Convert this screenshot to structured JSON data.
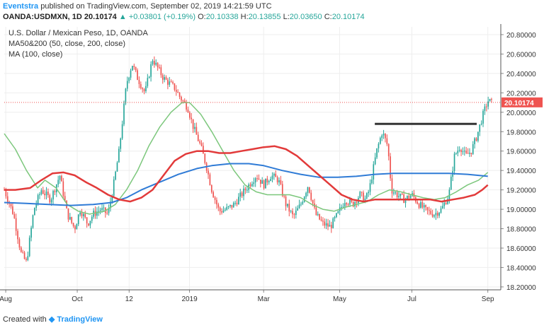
{
  "header": {
    "brand": "Eventstra",
    "published_text": "published on TradingView.com, September 02, 2019 14:21:59 UTC",
    "symbol": "OANDA:USDMXN, 1D",
    "last": "20.10174",
    "change_arrow": "▲",
    "change": "+0.03801 (+0.19%)",
    "open_label": "O:",
    "open": "20.10338",
    "high_label": "H:",
    "high": "20.13855",
    "low_label": "L:",
    "low": "20.03650",
    "close_label": "C:",
    "close": "20.10174"
  },
  "footer": {
    "created_text": "Created with",
    "logo_text": "TradingView"
  },
  "colors": {
    "up": "#26a69a",
    "down": "#ef5350",
    "ma50": "#7cc77c",
    "ma200": "#2f7bd6",
    "ma100": "#e23a3a",
    "resistance": "#333333",
    "price_line": "#ef5350",
    "price_label_bg": "#ef5350",
    "grid": "#eeeeee"
  },
  "chart_data": {
    "type": "candlestick",
    "title": "U.S. Dollar / Mexican Peso, 1D, OANDA",
    "indicator_labels": [
      "MA50&200 (50, close, 200, close)",
      "MA (100, close)"
    ],
    "x_ticks": [
      {
        "label": "Aug",
        "t": 0.04
      },
      {
        "label": "Oct",
        "t": 1.97
      },
      {
        "label": "12",
        "t": 3.37
      },
      {
        "label": "2019",
        "t": 5.0
      },
      {
        "label": "Mar",
        "t": 7.0
      },
      {
        "label": "May",
        "t": 9.05
      },
      {
        "label": "Jul",
        "t": 11.0
      },
      {
        "label": "Sep",
        "t": 13.05
      }
    ],
    "y_axis": {
      "ylim": [
        18.17,
        20.88
      ],
      "ticks": [
        "20.80000",
        "20.60000",
        "20.40000",
        "20.20000",
        "20.00000",
        "19.80000",
        "19.60000",
        "19.40000",
        "19.20000",
        "19.00000",
        "18.80000",
        "18.60000",
        "18.40000",
        "18.20000"
      ]
    },
    "x_range": [
      0,
      13.4
    ],
    "current_price": {
      "value": 20.10174,
      "label": "20.10174"
    },
    "resistance": {
      "t_start": 10.0,
      "t_end": 12.75,
      "value": 19.88
    },
    "keypoints": [
      [
        0.0,
        19.2
      ],
      [
        0.25,
        18.95
      ],
      [
        0.45,
        18.55
      ],
      [
        0.6,
        18.45
      ],
      [
        0.8,
        19.0
      ],
      [
        1.0,
        19.2
      ],
      [
        1.25,
        19.1
      ],
      [
        1.5,
        19.35
      ],
      [
        1.7,
        18.95
      ],
      [
        1.9,
        18.8
      ],
      [
        2.05,
        19.0
      ],
      [
        2.25,
        18.85
      ],
      [
        2.4,
        18.95
      ],
      [
        2.6,
        19.0
      ],
      [
        2.8,
        18.95
      ],
      [
        2.95,
        19.25
      ],
      [
        3.1,
        19.6
      ],
      [
        3.2,
        19.95
      ],
      [
        3.3,
        20.3
      ],
      [
        3.45,
        20.5
      ],
      [
        3.6,
        20.35
      ],
      [
        3.8,
        20.2
      ],
      [
        4.0,
        20.55
      ],
      [
        4.15,
        20.45
      ],
      [
        4.3,
        20.35
      ],
      [
        4.45,
        20.3
      ],
      [
        4.6,
        20.25
      ],
      [
        4.75,
        20.15
      ],
      [
        4.95,
        20.05
      ],
      [
        5.1,
        19.85
      ],
      [
        5.3,
        19.65
      ],
      [
        5.45,
        19.45
      ],
      [
        5.6,
        19.2
      ],
      [
        5.8,
        18.98
      ],
      [
        6.0,
        19.0
      ],
      [
        6.2,
        19.05
      ],
      [
        6.4,
        19.15
      ],
      [
        6.6,
        19.25
      ],
      [
        6.8,
        19.35
      ],
      [
        7.0,
        19.25
      ],
      [
        7.2,
        19.35
      ],
      [
        7.4,
        19.3
      ],
      [
        7.6,
        19.05
      ],
      [
        7.8,
        18.92
      ],
      [
        8.0,
        19.05
      ],
      [
        8.2,
        19.25
      ],
      [
        8.4,
        18.95
      ],
      [
        8.6,
        18.85
      ],
      [
        8.8,
        18.82
      ],
      [
        9.0,
        18.95
      ],
      [
        9.2,
        19.1
      ],
      [
        9.4,
        19.05
      ],
      [
        9.6,
        19.15
      ],
      [
        9.75,
        19.1
      ],
      [
        9.85,
        19.2
      ],
      [
        10.05,
        19.6
      ],
      [
        10.2,
        19.8
      ],
      [
        10.35,
        19.65
      ],
      [
        10.45,
        19.2
      ],
      [
        10.6,
        19.15
      ],
      [
        10.8,
        19.1
      ],
      [
        11.0,
        19.15
      ],
      [
        11.2,
        19.05
      ],
      [
        11.4,
        18.98
      ],
      [
        11.6,
        18.95
      ],
      [
        11.8,
        19.0
      ],
      [
        12.0,
        19.15
      ],
      [
        12.15,
        19.55
      ],
      [
        12.3,
        19.65
      ],
      [
        12.45,
        19.55
      ],
      [
        12.6,
        19.6
      ],
      [
        12.75,
        19.75
      ],
      [
        12.9,
        19.95
      ],
      [
        13.05,
        20.12
      ],
      [
        13.15,
        20.1
      ]
    ],
    "series": [
      {
        "name": "MA50",
        "points": [
          [
            0.0,
            19.78
          ],
          [
            0.3,
            19.62
          ],
          [
            0.6,
            19.4
          ],
          [
            0.9,
            19.22
          ],
          [
            1.1,
            19.3
          ],
          [
            1.4,
            19.22
          ],
          [
            1.7,
            19.05
          ],
          [
            2.0,
            18.98
          ],
          [
            2.3,
            18.95
          ],
          [
            2.7,
            18.98
          ],
          [
            3.0,
            19.05
          ],
          [
            3.3,
            19.2
          ],
          [
            3.6,
            19.4
          ],
          [
            3.9,
            19.65
          ],
          [
            4.2,
            19.85
          ],
          [
            4.5,
            20.0
          ],
          [
            4.8,
            20.1
          ],
          [
            5.0,
            20.1
          ],
          [
            5.3,
            19.98
          ],
          [
            5.6,
            19.8
          ],
          [
            5.9,
            19.6
          ],
          [
            6.2,
            19.4
          ],
          [
            6.5,
            19.25
          ],
          [
            6.8,
            19.18
          ],
          [
            7.1,
            19.15
          ],
          [
            7.4,
            19.15
          ],
          [
            7.7,
            19.15
          ],
          [
            8.0,
            19.12
          ],
          [
            8.3,
            19.05
          ],
          [
            8.6,
            19.0
          ],
          [
            8.9,
            18.98
          ],
          [
            9.2,
            19.02
          ],
          [
            9.5,
            19.05
          ],
          [
            9.8,
            19.08
          ],
          [
            10.1,
            19.15
          ],
          [
            10.4,
            19.2
          ],
          [
            10.7,
            19.18
          ],
          [
            11.0,
            19.15
          ],
          [
            11.3,
            19.12
          ],
          [
            11.6,
            19.1
          ],
          [
            11.9,
            19.12
          ],
          [
            12.2,
            19.18
          ],
          [
            12.5,
            19.25
          ],
          [
            12.8,
            19.3
          ],
          [
            13.05,
            19.38
          ]
        ]
      },
      {
        "name": "MA200",
        "points": [
          [
            0.0,
            19.07
          ],
          [
            0.6,
            19.06
          ],
          [
            1.2,
            19.05
          ],
          [
            1.8,
            19.04
          ],
          [
            2.4,
            19.05
          ],
          [
            2.9,
            19.07
          ],
          [
            3.3,
            19.12
          ],
          [
            3.7,
            19.2
          ],
          [
            4.2,
            19.28
          ],
          [
            4.7,
            19.36
          ],
          [
            5.2,
            19.42
          ],
          [
            5.6,
            19.45
          ],
          [
            6.1,
            19.47
          ],
          [
            6.6,
            19.47
          ],
          [
            7.0,
            19.45
          ],
          [
            7.5,
            19.4
          ],
          [
            8.0,
            19.36
          ],
          [
            8.5,
            19.33
          ],
          [
            9.0,
            19.33
          ],
          [
            9.5,
            19.34
          ],
          [
            10.0,
            19.36
          ],
          [
            10.5,
            19.37
          ],
          [
            11.0,
            19.37
          ],
          [
            11.5,
            19.37
          ],
          [
            12.0,
            19.37
          ],
          [
            12.5,
            19.36
          ],
          [
            13.05,
            19.34
          ]
        ]
      },
      {
        "name": "MA100",
        "points": [
          [
            0.0,
            19.2
          ],
          [
            0.3,
            19.2
          ],
          [
            0.7,
            19.22
          ],
          [
            1.0,
            19.3
          ],
          [
            1.3,
            19.37
          ],
          [
            1.6,
            19.38
          ],
          [
            1.9,
            19.35
          ],
          [
            2.2,
            19.28
          ],
          [
            2.5,
            19.22
          ],
          [
            2.8,
            19.15
          ],
          [
            3.1,
            19.1
          ],
          [
            3.4,
            19.08
          ],
          [
            3.7,
            19.12
          ],
          [
            4.0,
            19.2
          ],
          [
            4.3,
            19.35
          ],
          [
            4.6,
            19.5
          ],
          [
            4.9,
            19.57
          ],
          [
            5.2,
            19.6
          ],
          [
            5.5,
            19.6
          ],
          [
            5.8,
            19.58
          ],
          [
            6.1,
            19.58
          ],
          [
            6.4,
            19.6
          ],
          [
            6.7,
            19.62
          ],
          [
            7.0,
            19.64
          ],
          [
            7.3,
            19.65
          ],
          [
            7.6,
            19.62
          ],
          [
            7.9,
            19.55
          ],
          [
            8.2,
            19.45
          ],
          [
            8.5,
            19.35
          ],
          [
            8.8,
            19.25
          ],
          [
            9.1,
            19.15
          ],
          [
            9.4,
            19.1
          ],
          [
            9.7,
            19.08
          ],
          [
            10.0,
            19.1
          ],
          [
            10.3,
            19.1
          ],
          [
            10.6,
            19.1
          ],
          [
            10.9,
            19.1
          ],
          [
            11.2,
            19.1
          ],
          [
            11.5,
            19.1
          ],
          [
            11.8,
            19.08
          ],
          [
            12.1,
            19.1
          ],
          [
            12.4,
            19.12
          ],
          [
            12.7,
            19.15
          ],
          [
            12.9,
            19.2
          ],
          [
            13.05,
            19.25
          ]
        ]
      }
    ]
  }
}
